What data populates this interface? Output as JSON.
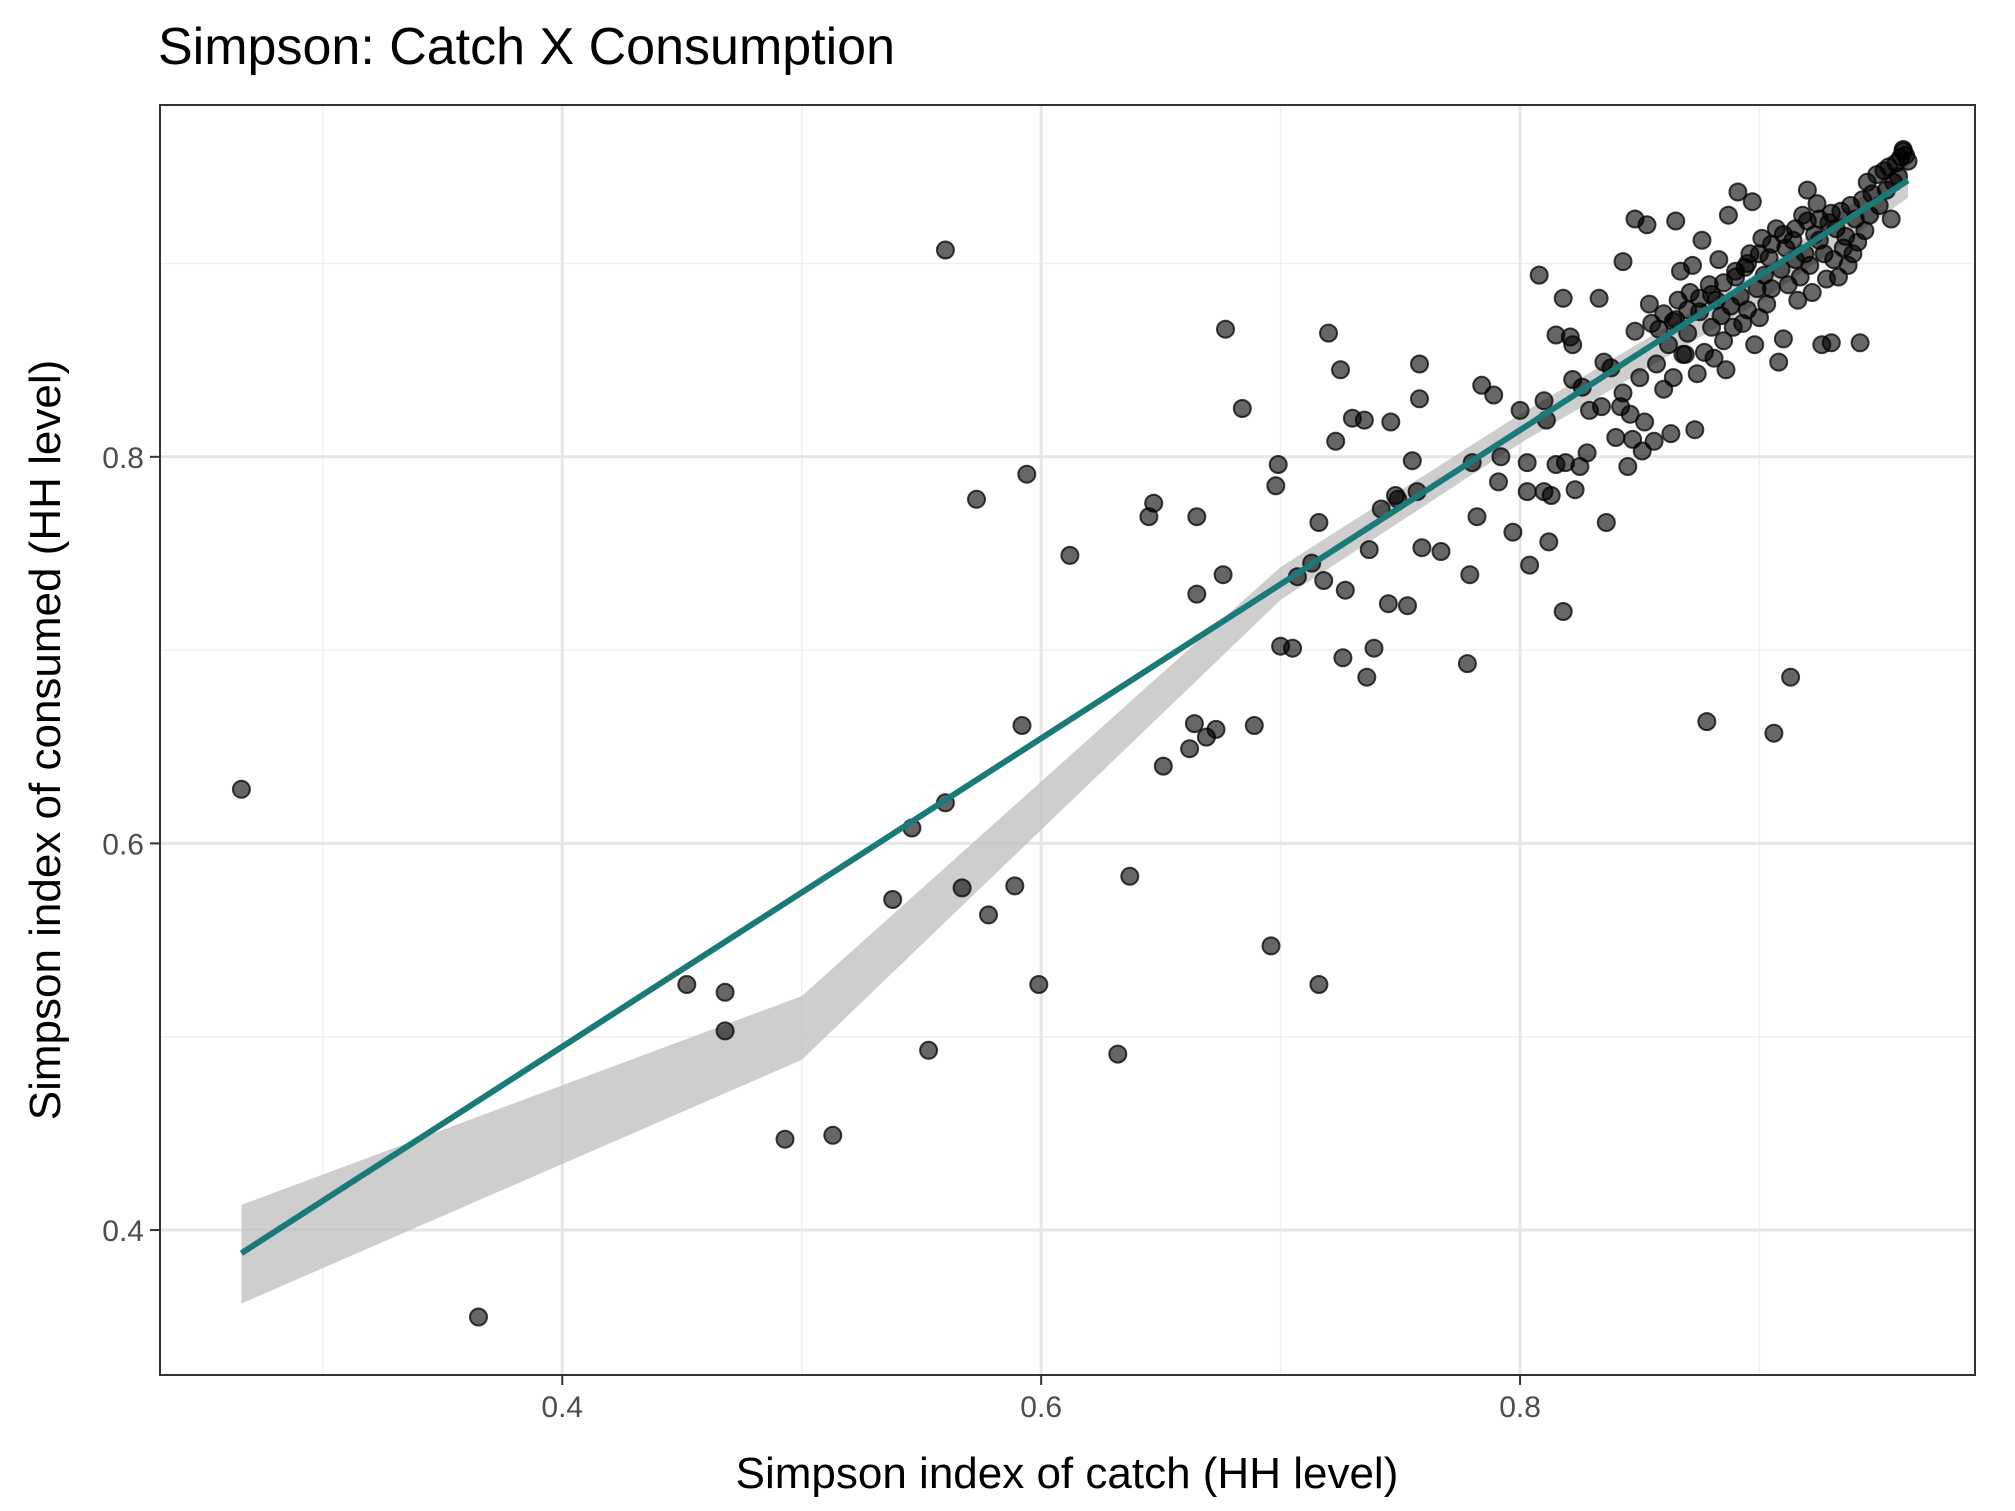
{
  "chart_data": {
    "type": "scatter",
    "title": "Simpson: Catch X Consumption",
    "xlabel": "Simpson index of catch (HH level)",
    "ylabel": "Simpson index of consumed (HH level)",
    "xlim": [
      0.232,
      0.99
    ],
    "ylim": [
      0.325,
      0.982
    ],
    "x_ticks": [
      0.4,
      0.6,
      0.8
    ],
    "y_ticks": [
      0.4,
      0.6,
      0.8
    ],
    "x_tick_labels": [
      "0.4",
      "0.6",
      "0.8"
    ],
    "y_tick_labels": [
      "0.4",
      "0.6",
      "0.8"
    ],
    "grid": true,
    "colors": {
      "points": "#000000",
      "fit_line": "#1a7a78",
      "confidence_band": "#bdbdbd",
      "grid_major": "#e6e6e6",
      "grid_minor": "#f0f0f0",
      "panel_border": "#333333"
    },
    "fit": {
      "method": "linear",
      "x_range": [
        0.266,
        0.962
      ],
      "line": [
        [
          0.266,
          0.388
        ],
        [
          0.962,
          0.943
        ]
      ],
      "band_upper": [
        [
          0.266,
          0.413
        ],
        [
          0.5,
          0.521
        ],
        [
          0.7,
          0.743
        ],
        [
          0.8,
          0.822
        ],
        [
          0.9,
          0.896
        ],
        [
          0.962,
          0.952
        ]
      ],
      "band_lower": [
        [
          0.266,
          0.362
        ],
        [
          0.5,
          0.488
        ],
        [
          0.7,
          0.726
        ],
        [
          0.8,
          0.807
        ],
        [
          0.9,
          0.88
        ],
        [
          0.962,
          0.934
        ]
      ]
    },
    "points": [
      [
        0.266,
        0.628
      ],
      [
        0.365,
        0.355
      ],
      [
        0.452,
        0.527
      ],
      [
        0.468,
        0.523
      ],
      [
        0.468,
        0.503
      ],
      [
        0.493,
        0.447
      ],
      [
        0.513,
        0.449
      ],
      [
        0.538,
        0.571
      ],
      [
        0.546,
        0.608
      ],
      [
        0.553,
        0.493
      ],
      [
        0.56,
        0.621
      ],
      [
        0.567,
        0.577
      ],
      [
        0.56,
        0.907
      ],
      [
        0.573,
        0.778
      ],
      [
        0.578,
        0.563
      ],
      [
        0.589,
        0.578
      ],
      [
        0.592,
        0.661
      ],
      [
        0.594,
        0.791
      ],
      [
        0.599,
        0.527
      ],
      [
        0.612,
        0.749
      ],
      [
        0.632,
        0.491
      ],
      [
        0.637,
        0.583
      ],
      [
        0.645,
        0.769
      ],
      [
        0.647,
        0.776
      ],
      [
        0.651,
        0.64
      ],
      [
        0.662,
        0.649
      ],
      [
        0.664,
        0.662
      ],
      [
        0.665,
        0.729
      ],
      [
        0.665,
        0.769
      ],
      [
        0.669,
        0.655
      ],
      [
        0.673,
        0.659
      ],
      [
        0.676,
        0.739
      ],
      [
        0.677,
        0.866
      ],
      [
        0.684,
        0.825
      ],
      [
        0.689,
        0.661
      ],
      [
        0.696,
        0.547
      ],
      [
        0.698,
        0.785
      ],
      [
        0.699,
        0.796
      ],
      [
        0.7,
        0.702
      ],
      [
        0.705,
        0.701
      ],
      [
        0.707,
        0.738
      ],
      [
        0.713,
        0.745
      ],
      [
        0.716,
        0.527
      ],
      [
        0.716,
        0.766
      ],
      [
        0.718,
        0.736
      ],
      [
        0.72,
        0.864
      ],
      [
        0.723,
        0.808
      ],
      [
        0.725,
        0.845
      ],
      [
        0.726,
        0.696
      ],
      [
        0.727,
        0.731
      ],
      [
        0.73,
        0.82
      ],
      [
        0.735,
        0.819
      ],
      [
        0.736,
        0.686
      ],
      [
        0.737,
        0.752
      ],
      [
        0.739,
        0.701
      ],
      [
        0.742,
        0.773
      ],
      [
        0.745,
        0.724
      ],
      [
        0.746,
        0.818
      ],
      [
        0.748,
        0.78
      ],
      [
        0.749,
        0.778
      ],
      [
        0.753,
        0.723
      ],
      [
        0.755,
        0.798
      ],
      [
        0.757,
        0.782
      ],
      [
        0.758,
        0.848
      ],
      [
        0.758,
        0.83
      ],
      [
        0.759,
        0.753
      ],
      [
        0.767,
        0.751
      ],
      [
        0.778,
        0.693
      ],
      [
        0.779,
        0.739
      ],
      [
        0.78,
        0.797
      ],
      [
        0.782,
        0.769
      ],
      [
        0.784,
        0.837
      ],
      [
        0.789,
        0.832
      ],
      [
        0.791,
        0.787
      ],
      [
        0.792,
        0.8
      ],
      [
        0.797,
        0.761
      ],
      [
        0.8,
        0.824
      ],
      [
        0.803,
        0.797
      ],
      [
        0.803,
        0.782
      ],
      [
        0.804,
        0.744
      ],
      [
        0.808,
        0.894
      ],
      [
        0.81,
        0.782
      ],
      [
        0.81,
        0.829
      ],
      [
        0.811,
        0.819
      ],
      [
        0.812,
        0.756
      ],
      [
        0.813,
        0.78
      ],
      [
        0.815,
        0.863
      ],
      [
        0.815,
        0.796
      ],
      [
        0.818,
        0.72
      ],
      [
        0.818,
        0.882
      ],
      [
        0.819,
        0.797
      ],
      [
        0.821,
        0.862
      ],
      [
        0.822,
        0.84
      ],
      [
        0.822,
        0.858
      ],
      [
        0.823,
        0.783
      ],
      [
        0.825,
        0.795
      ],
      [
        0.826,
        0.836
      ],
      [
        0.828,
        0.802
      ],
      [
        0.829,
        0.824
      ],
      [
        0.833,
        0.882
      ],
      [
        0.834,
        0.826
      ],
      [
        0.835,
        0.849
      ],
      [
        0.836,
        0.766
      ],
      [
        0.838,
        0.846
      ],
      [
        0.84,
        0.81
      ],
      [
        0.842,
        0.826
      ],
      [
        0.843,
        0.901
      ],
      [
        0.843,
        0.833
      ],
      [
        0.845,
        0.795
      ],
      [
        0.846,
        0.822
      ],
      [
        0.847,
        0.809
      ],
      [
        0.848,
        0.865
      ],
      [
        0.848,
        0.923
      ],
      [
        0.85,
        0.841
      ],
      [
        0.851,
        0.803
      ],
      [
        0.852,
        0.818
      ],
      [
        0.853,
        0.92
      ],
      [
        0.854,
        0.879
      ],
      [
        0.856,
        0.808
      ],
      [
        0.857,
        0.848
      ],
      [
        0.858,
        0.866
      ],
      [
        0.86,
        0.835
      ],
      [
        0.862,
        0.858
      ],
      [
        0.863,
        0.812
      ],
      [
        0.864,
        0.841
      ],
      [
        0.864,
        0.87
      ],
      [
        0.865,
        0.922
      ],
      [
        0.866,
        0.881
      ],
      [
        0.867,
        0.896
      ],
      [
        0.868,
        0.853
      ],
      [
        0.869,
        0.853
      ],
      [
        0.87,
        0.864
      ],
      [
        0.871,
        0.885
      ],
      [
        0.872,
        0.899
      ],
      [
        0.873,
        0.814
      ],
      [
        0.874,
        0.843
      ],
      [
        0.875,
        0.875
      ],
      [
        0.876,
        0.912
      ],
      [
        0.877,
        0.854
      ],
      [
        0.878,
        0.663
      ],
      [
        0.879,
        0.889
      ],
      [
        0.88,
        0.867
      ],
      [
        0.881,
        0.851
      ],
      [
        0.882,
        0.881
      ],
      [
        0.883,
        0.902
      ],
      [
        0.884,
        0.873
      ],
      [
        0.885,
        0.86
      ],
      [
        0.886,
        0.845
      ],
      [
        0.887,
        0.925
      ],
      [
        0.888,
        0.878
      ],
      [
        0.889,
        0.867
      ],
      [
        0.89,
        0.893
      ],
      [
        0.891,
        0.937
      ],
      [
        0.892,
        0.883
      ],
      [
        0.893,
        0.869
      ],
      [
        0.894,
        0.898
      ],
      [
        0.895,
        0.876
      ],
      [
        0.896,
        0.905
      ],
      [
        0.897,
        0.932
      ],
      [
        0.898,
        0.858
      ],
      [
        0.899,
        0.887
      ],
      [
        0.9,
        0.872
      ],
      [
        0.901,
        0.913
      ],
      [
        0.902,
        0.894
      ],
      [
        0.903,
        0.879
      ],
      [
        0.904,
        0.903
      ],
      [
        0.905,
        0.887
      ],
      [
        0.906,
        0.657
      ],
      [
        0.907,
        0.918
      ],
      [
        0.908,
        0.849
      ],
      [
        0.909,
        0.897
      ],
      [
        0.91,
        0.861
      ],
      [
        0.911,
        0.908
      ],
      [
        0.912,
        0.889
      ],
      [
        0.913,
        0.686
      ],
      [
        0.914,
        0.912
      ],
      [
        0.915,
        0.902
      ],
      [
        0.916,
        0.881
      ],
      [
        0.917,
        0.893
      ],
      [
        0.918,
        0.925
      ],
      [
        0.919,
        0.905
      ],
      [
        0.92,
        0.938
      ],
      [
        0.921,
        0.899
      ],
      [
        0.922,
        0.885
      ],
      [
        0.923,
        0.915
      ],
      [
        0.924,
        0.931
      ],
      [
        0.925,
        0.912
      ],
      [
        0.926,
        0.858
      ],
      [
        0.927,
        0.905
      ],
      [
        0.928,
        0.892
      ],
      [
        0.929,
        0.921
      ],
      [
        0.93,
        0.859
      ],
      [
        0.931,
        0.902
      ],
      [
        0.932,
        0.918
      ],
      [
        0.933,
        0.893
      ],
      [
        0.934,
        0.927
      ],
      [
        0.935,
        0.908
      ],
      [
        0.936,
        0.914
      ],
      [
        0.937,
        0.899
      ],
      [
        0.938,
        0.93
      ],
      [
        0.939,
        0.905
      ],
      [
        0.94,
        0.923
      ],
      [
        0.941,
        0.911
      ],
      [
        0.942,
        0.859
      ],
      [
        0.943,
        0.933
      ],
      [
        0.944,
        0.917
      ],
      [
        0.945,
        0.942
      ],
      [
        0.946,
        0.925
      ],
      [
        0.947,
        0.936
      ],
      [
        0.949,
        0.946
      ],
      [
        0.95,
        0.93
      ],
      [
        0.952,
        0.948
      ],
      [
        0.953,
        0.938
      ],
      [
        0.954,
        0.95
      ],
      [
        0.955,
        0.923
      ],
      [
        0.956,
        0.942
      ],
      [
        0.957,
        0.952
      ],
      [
        0.958,
        0.945
      ],
      [
        0.959,
        0.955
      ],
      [
        0.96,
        0.958
      ],
      [
        0.961,
        0.956
      ],
      [
        0.962,
        0.953
      ],
      [
        0.96,
        0.959
      ],
      [
        0.88,
        0.884
      ],
      [
        0.9,
        0.905
      ],
      [
        0.91,
        0.915
      ],
      [
        0.89,
        0.896
      ],
      [
        0.87,
        0.876
      ],
      [
        0.92,
        0.922
      ],
      [
        0.93,
        0.926
      ],
      [
        0.885,
        0.89
      ],
      [
        0.895,
        0.9
      ],
      [
        0.905,
        0.91
      ],
      [
        0.915,
        0.918
      ],
      [
        0.925,
        0.923
      ],
      [
        0.875,
        0.882
      ],
      [
        0.865,
        0.871
      ],
      [
        0.86,
        0.874
      ],
      [
        0.855,
        0.869
      ]
    ]
  }
}
